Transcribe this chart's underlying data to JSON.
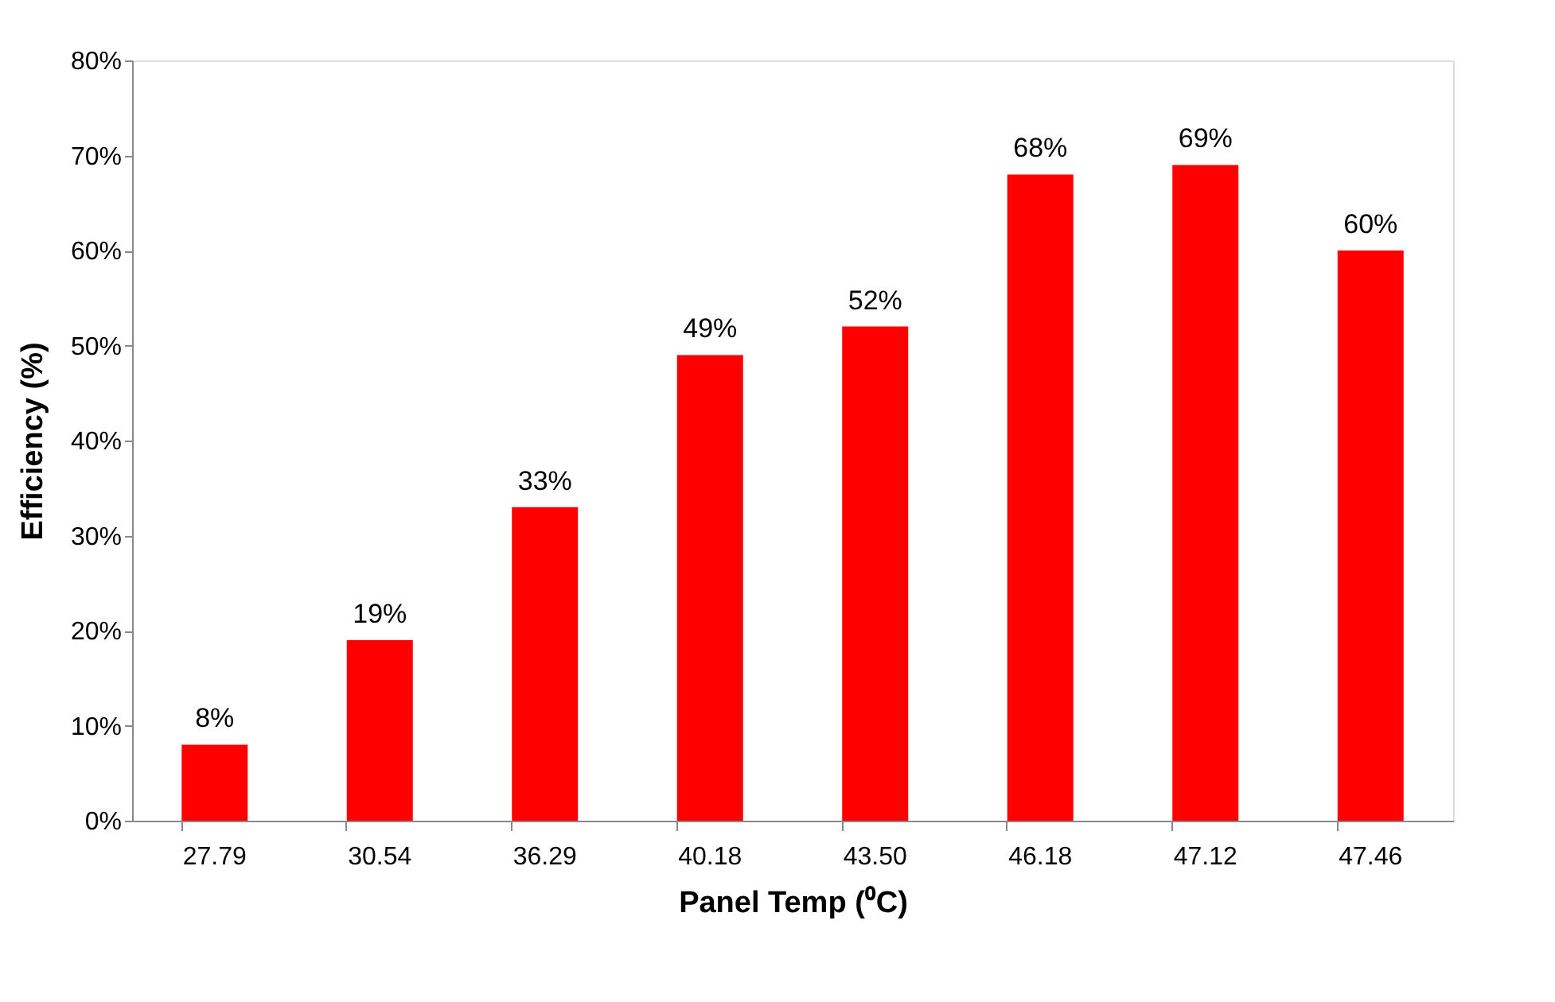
{
  "chart_data": {
    "type": "bar",
    "xlabel": "Panel Temp (⁰C)",
    "ylabel": "Efficiency (%)",
    "categories": [
      "27.79",
      "30.54",
      "36.29",
      "40.18",
      "43.50",
      "46.18",
      "47.12",
      "47.46"
    ],
    "values": [
      8,
      19,
      33,
      49,
      52,
      68,
      69,
      60
    ],
    "value_labels": [
      "8%",
      "19%",
      "33%",
      "49%",
      "52%",
      "68%",
      "69%",
      "60%"
    ],
    "color": "#ff0000",
    "ylim": [
      0,
      80
    ],
    "yticks": [
      {
        "value": 0,
        "label": "0%"
      },
      {
        "value": 10,
        "label": "10%"
      },
      {
        "value": 20,
        "label": "20%"
      },
      {
        "value": 30,
        "label": "30%"
      },
      {
        "value": 40,
        "label": "40%"
      },
      {
        "value": 50,
        "label": "50%"
      },
      {
        "value": 60,
        "label": "60%"
      },
      {
        "value": 70,
        "label": "70%"
      },
      {
        "value": 80,
        "label": "80%"
      }
    ],
    "grid": false
  }
}
